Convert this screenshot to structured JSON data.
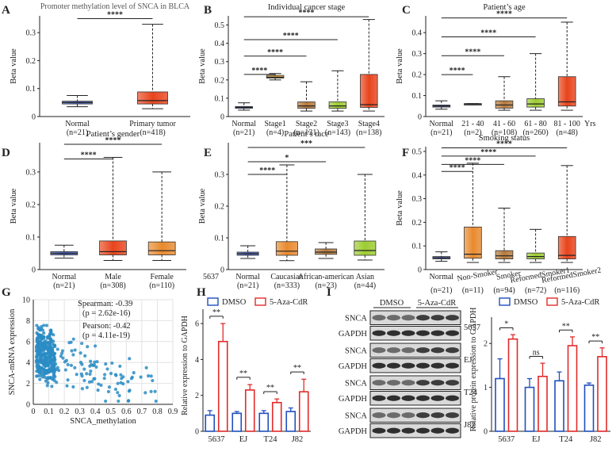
{
  "colors": {
    "dmso": "#1f4fbf",
    "aza": "#e32a2a",
    "scatter": "#2a8cc4"
  },
  "panels": [
    {
      "letter": "A",
      "title": "Promoter methylation level of SNCA in BLCA",
      "ylabel": "Beta value",
      "yticks": [
        "0",
        "0.1",
        "0.2",
        "0.3"
      ],
      "ymax": 0.36,
      "boxes": [
        {
          "label": "Normal",
          "n": "(n=21)",
          "color": "#4a66c8",
          "q1": 0.045,
          "med": 0.05,
          "q3": 0.055,
          "wlo": 0.035,
          "whi": 0.075
        },
        {
          "label": "Primary tumor",
          "n": "(n=418)",
          "color": "#e8441c",
          "q1": 0.045,
          "med": 0.057,
          "q3": 0.088,
          "wlo": 0.028,
          "whi": 0.33
        }
      ],
      "sig": [
        {
          "text": "****",
          "y": 0.35
        }
      ]
    },
    {
      "letter": "B",
      "title": "Individual cancer stage",
      "ylabel": "Beta value",
      "yticks": [
        "0",
        "0.1",
        "0.2",
        "0.3",
        "0.4",
        "0.5"
      ],
      "ymax": 0.55,
      "boxes": [
        {
          "label": "Normal",
          "n": "(n=21)",
          "color": "#4a66c8",
          "q1": 0.045,
          "med": 0.05,
          "q3": 0.055,
          "wlo": 0.035,
          "whi": 0.075
        },
        {
          "label": "Stage1",
          "n": "(n=4)",
          "color": "#e6a833",
          "q1": 0.21,
          "med": 0.215,
          "q3": 0.225,
          "wlo": 0.2,
          "whi": 0.235
        },
        {
          "label": "Stage2",
          "n": "(n=131)",
          "color": "#b77a3c",
          "q1": 0.045,
          "med": 0.058,
          "q3": 0.08,
          "wlo": 0.03,
          "whi": 0.19
        },
        {
          "label": "Stage3",
          "n": "(n=143)",
          "color": "#9ccc30",
          "q1": 0.045,
          "med": 0.058,
          "q3": 0.08,
          "wlo": 0.03,
          "whi": 0.25
        },
        {
          "label": "Stage4",
          "n": "(n=138)",
          "color": "#e8441c",
          "q1": 0.05,
          "med": 0.065,
          "q3": 0.23,
          "wlo": 0.03,
          "whi": 0.53
        }
      ],
      "sig": [
        {
          "text": "****",
          "y": 0.545
        },
        {
          "text": "****",
          "y": 0.42
        },
        {
          "text": "****",
          "y": 0.33
        },
        {
          "text": "****",
          "y": 0.23
        }
      ]
    },
    {
      "letter": "C",
      "title": "Patient’s age",
      "ylabel": "Beta value",
      "yticks": [
        "0",
        "0.1",
        "0.2",
        "0.3",
        "0.4"
      ],
      "ymax": 0.48,
      "xunit": "Yrs",
      "boxes": [
        {
          "label": "Normal",
          "n": "(n=21)",
          "color": "#4a66c8",
          "q1": 0.045,
          "med": 0.05,
          "q3": 0.055,
          "wlo": 0.035,
          "whi": 0.075
        },
        {
          "label": "21 - 40",
          "n": "(n=2)",
          "color": "#7f7f7f",
          "q1": 0.058,
          "med": 0.06,
          "q3": 0.062,
          "wlo": 0.058,
          "whi": 0.062
        },
        {
          "label": "41 - 60",
          "n": "(n=108)",
          "color": "#b77a3c",
          "q1": 0.04,
          "med": 0.055,
          "q3": 0.075,
          "wlo": 0.03,
          "whi": 0.19
        },
        {
          "label": "61 - 80",
          "n": "(n=260)",
          "color": "#9ccc30",
          "q1": 0.045,
          "med": 0.06,
          "q3": 0.085,
          "wlo": 0.03,
          "whi": 0.3
        },
        {
          "label": "81 - 100",
          "n": "(n=48)",
          "color": "#e8441c",
          "q1": 0.05,
          "med": 0.07,
          "q3": 0.19,
          "wlo": 0.03,
          "whi": 0.45
        }
      ],
      "sig": [
        {
          "text": "****",
          "y": 0.47
        },
        {
          "text": "****",
          "y": 0.38
        },
        {
          "text": "****",
          "y": 0.29
        },
        {
          "text": "****",
          "y": 0.2
        }
      ]
    },
    {
      "letter": "D",
      "title": "Patient’s gender",
      "ylabel": "Beta value",
      "yticks": [
        "0",
        "0.1",
        "0.2",
        "0.3"
      ],
      "ymax": 0.39,
      "boxes": [
        {
          "label": "Normal",
          "n": "(n=21)",
          "color": "#4a66c8",
          "q1": 0.045,
          "med": 0.05,
          "q3": 0.055,
          "wlo": 0.035,
          "whi": 0.075
        },
        {
          "label": "Male",
          "n": "(n=308)",
          "color": "#e8441c",
          "q1": 0.045,
          "med": 0.055,
          "q3": 0.088,
          "wlo": 0.028,
          "whi": 0.345
        },
        {
          "label": "Female",
          "n": "(n=110)",
          "color": "#e88a2e",
          "q1": 0.045,
          "med": 0.058,
          "q3": 0.085,
          "wlo": 0.028,
          "whi": 0.3
        }
      ],
      "sig": [
        {
          "text": "****",
          "y": 0.385
        },
        {
          "text": "****",
          "y": 0.34
        }
      ]
    },
    {
      "letter": "E",
      "title": "Patient’s race",
      "ylabel": "Beta value",
      "yticks": [
        "0",
        "0.1",
        "0.2",
        "0.3"
      ],
      "ymax": 0.4,
      "boxes": [
        {
          "label": "Normal",
          "n": "(n=21)",
          "color": "#4a66c8",
          "q1": 0.045,
          "med": 0.05,
          "q3": 0.055,
          "wlo": 0.035,
          "whi": 0.075
        },
        {
          "label": "Caucasian",
          "n": "(n=333)",
          "color": "#e88a2e",
          "q1": 0.045,
          "med": 0.058,
          "q3": 0.088,
          "wlo": 0.028,
          "whi": 0.33
        },
        {
          "label": "African-american",
          "n": "(n=23)",
          "color": "#b77a3c",
          "q1": 0.048,
          "med": 0.055,
          "q3": 0.065,
          "wlo": 0.035,
          "whi": 0.085
        },
        {
          "label": "Asian",
          "n": "(n=44)",
          "color": "#9ccc30",
          "q1": 0.045,
          "med": 0.06,
          "q3": 0.09,
          "wlo": 0.03,
          "whi": 0.3
        }
      ],
      "sig": [
        {
          "text": "***",
          "y": 0.385
        },
        {
          "text": "*",
          "y": 0.34
        },
        {
          "text": "****",
          "y": 0.3
        }
      ],
      "stray": "5637"
    },
    {
      "letter": "F",
      "title": "Smoking status",
      "ylabel": "Beta value",
      "yticks": [
        "0",
        "0.1",
        "0.2",
        "0.3",
        "0.4",
        "0.5"
      ],
      "ymax": 0.52,
      "boxes": [
        {
          "label": "Normal",
          "n": "(n=21)",
          "color": "#4a66c8",
          "q1": 0.045,
          "med": 0.05,
          "q3": 0.055,
          "wlo": 0.035,
          "whi": 0.075
        },
        {
          "label": "Non-Smoker",
          "n": "(n=11)",
          "color": "#e88a2e",
          "q1": 0.048,
          "med": 0.065,
          "q3": 0.18,
          "wlo": 0.03,
          "whi": 0.45
        },
        {
          "label": "Smoker",
          "n": "(n=94)",
          "color": "#b77a3c",
          "q1": 0.045,
          "med": 0.058,
          "q3": 0.08,
          "wlo": 0.03,
          "whi": 0.26
        },
        {
          "label": "ReformedSmoker1",
          "n": "(n=72)",
          "color": "#9ccc30",
          "q1": 0.045,
          "med": 0.055,
          "q3": 0.07,
          "wlo": 0.03,
          "whi": 0.17
        },
        {
          "label": "ReformedSmoker2",
          "n": "(n=116)",
          "color": "#e8441c",
          "q1": 0.045,
          "med": 0.06,
          "q3": 0.14,
          "wlo": 0.03,
          "whi": 0.44
        }
      ],
      "sig": [
        {
          "text": "****",
          "y": 0.515
        },
        {
          "text": "****",
          "y": 0.48
        },
        {
          "text": "****",
          "y": 0.445
        },
        {
          "text": "****",
          "y": 0.415
        }
      ]
    }
  ],
  "panel_g": {
    "letter": "G",
    "xlabel": "SNCA_methylation",
    "ylabel": "SNCA-mRNA expression",
    "xticks": [
      "0",
      "0.1",
      "0.2",
      "0.3",
      "0.4",
      "0.5",
      "0.6",
      "0.7",
      "0.8",
      "0.9"
    ],
    "yticks": [
      "0",
      "2",
      "4",
      "6",
      "8",
      "10"
    ],
    "spearman": "Spearman: -0.39",
    "spearman_p": "(p = 2.62e-16)",
    "pearson": "Pearson: -0.42",
    "pearson_p": "(p = 4.11e-19)"
  },
  "panel_h": {
    "letter": "H",
    "ylabel": "Relative expression to GAPDH",
    "legend": [
      "DMSO",
      "5-Aza-CdR"
    ],
    "yticks": [
      "0",
      "2",
      "4",
      "6"
    ],
    "ymax": 6.8,
    "groups": [
      {
        "label": "5637",
        "dmso": 0.9,
        "dmso_err": 0.25,
        "aza": 5.0,
        "aza_err": 1.0,
        "sig": "**"
      },
      {
        "label": "EJ",
        "dmso": 1.0,
        "dmso_err": 0.1,
        "aza": 2.3,
        "aza_err": 0.3,
        "sig": "**"
      },
      {
        "label": "T24",
        "dmso": 1.0,
        "dmso_err": 0.15,
        "aza": 1.6,
        "aza_err": 0.2,
        "sig": "**"
      },
      {
        "label": "J82",
        "dmso": 1.1,
        "dmso_err": 0.2,
        "aza": 2.2,
        "aza_err": 0.7,
        "sig": "**"
      }
    ]
  },
  "panel_i": {
    "letter": "I",
    "blot_header": [
      "DMSO",
      "5-Aza-CdR"
    ],
    "rows": [
      {
        "protein": "SNCA",
        "cell": "5637"
      },
      {
        "protein": "GAPDH",
        "cell": ""
      },
      {
        "protein": "SNCA",
        "cell": "EJ"
      },
      {
        "protein": "GAPDH",
        "cell": ""
      },
      {
        "protein": "SNCA",
        "cell": "T24"
      },
      {
        "protein": "GAPDH",
        "cell": ""
      },
      {
        "protein": "SNCA",
        "cell": "J82"
      },
      {
        "protein": "GAPDH",
        "cell": ""
      }
    ],
    "ylabel": "Relative protein expression to GAPDH",
    "legend": [
      "DMSO",
      "5-Aza-CdR"
    ],
    "yticks": [
      "0",
      "1",
      "2"
    ],
    "ymax": 2.6,
    "groups": [
      {
        "label": "5637",
        "dmso": 1.2,
        "dmso_err": 0.45,
        "aza": 2.1,
        "aza_err": 0.1,
        "sig": "*"
      },
      {
        "label": "EJ",
        "dmso": 1.0,
        "dmso_err": 0.2,
        "aza": 1.25,
        "aza_err": 0.3,
        "sig": "ns"
      },
      {
        "label": "T24",
        "dmso": 1.15,
        "dmso_err": 0.2,
        "aza": 1.95,
        "aza_err": 0.2,
        "sig": "**"
      },
      {
        "label": "J82",
        "dmso": 1.05,
        "dmso_err": 0.05,
        "aza": 1.7,
        "aza_err": 0.2,
        "sig": "**"
      }
    ]
  },
  "chart_data": [
    {
      "type": "box",
      "panel": "A",
      "title": "Promoter methylation level of SNCA in BLCA",
      "ylabel": "Beta value",
      "categories": [
        "Normal (n=21)",
        "Primary tumor (n=418)"
      ],
      "ylim": [
        0,
        0.36
      ]
    },
    {
      "type": "box",
      "panel": "B",
      "title": "Individual cancer stage",
      "ylabel": "Beta value",
      "categories": [
        "Normal",
        "Stage1",
        "Stage2",
        "Stage3",
        "Stage4"
      ],
      "ylim": [
        0,
        0.55
      ]
    },
    {
      "type": "box",
      "panel": "C",
      "title": "Patient's age",
      "ylabel": "Beta value",
      "categories": [
        "Normal",
        "21 - 40",
        "41 - 60",
        "61 - 80",
        "81 - 100"
      ],
      "ylim": [
        0,
        0.48
      ]
    },
    {
      "type": "box",
      "panel": "D",
      "title": "Patient's gender",
      "ylabel": "Beta value",
      "categories": [
        "Normal",
        "Male",
        "Female"
      ],
      "ylim": [
        0,
        0.39
      ]
    },
    {
      "type": "box",
      "panel": "E",
      "title": "Patient's race",
      "ylabel": "Beta value",
      "categories": [
        "Normal",
        "Caucasian",
        "African-american",
        "Asian"
      ],
      "ylim": [
        0,
        0.4
      ]
    },
    {
      "type": "box",
      "panel": "F",
      "title": "Smoking status",
      "ylabel": "Beta value",
      "categories": [
        "Normal",
        "Non-Smoker",
        "Smoker",
        "ReformedSmoker1",
        "ReformedSmoker2"
      ],
      "ylim": [
        0,
        0.52
      ]
    },
    {
      "type": "scatter",
      "panel": "G",
      "xlabel": "SNCA_methylation",
      "ylabel": "SNCA-mRNA expression",
      "xlim": [
        0,
        0.9
      ],
      "ylim": [
        0,
        10
      ]
    },
    {
      "type": "bar",
      "panel": "H",
      "ylabel": "Relative expression to GAPDH",
      "categories": [
        "5637",
        "EJ",
        "T24",
        "J82"
      ],
      "series": [
        {
          "name": "DMSO",
          "values": [
            0.9,
            1.0,
            1.0,
            1.1
          ]
        },
        {
          "name": "5-Aza-CdR",
          "values": [
            5.0,
            2.3,
            1.6,
            2.2
          ]
        }
      ]
    },
    {
      "type": "bar",
      "panel": "I",
      "ylabel": "Relative protein expression to GAPDH",
      "categories": [
        "5637",
        "EJ",
        "T24",
        "J82"
      ],
      "series": [
        {
          "name": "DMSO",
          "values": [
            1.2,
            1.0,
            1.15,
            1.05
          ]
        },
        {
          "name": "5-Aza-CdR",
          "values": [
            2.1,
            1.25,
            1.95,
            1.7
          ]
        }
      ]
    }
  ]
}
